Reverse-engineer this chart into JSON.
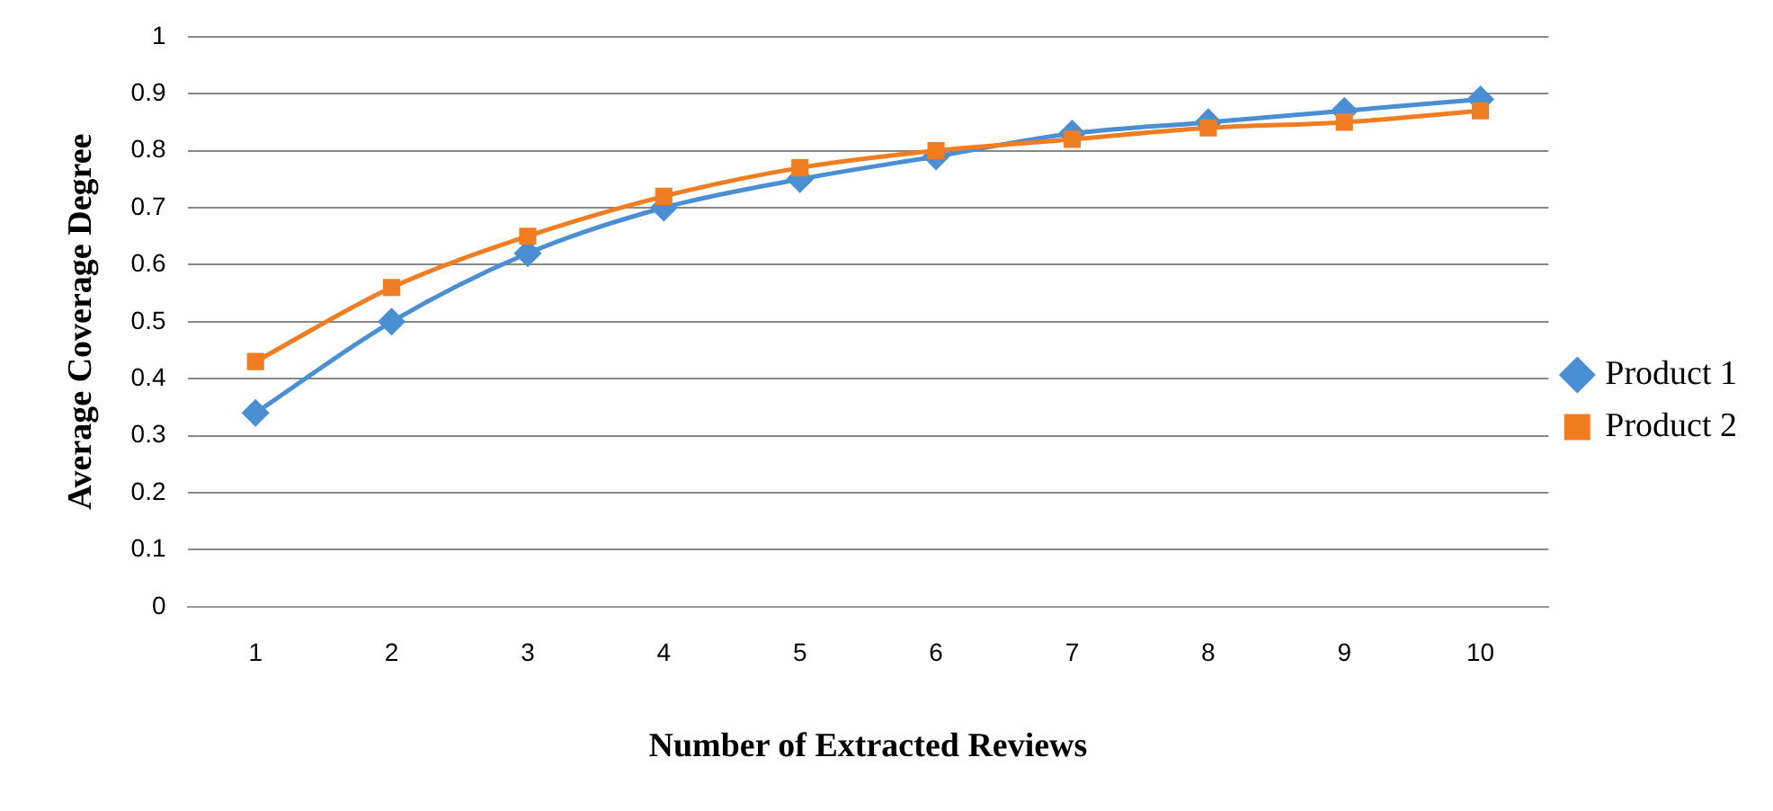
{
  "chart_data": {
    "type": "line",
    "xlabel": "Number of Extracted Reviews",
    "ylabel": "Average Coverage Degree",
    "categories": [
      "1",
      "2",
      "3",
      "4",
      "5",
      "6",
      "7",
      "8",
      "9",
      "10"
    ],
    "series": [
      {
        "name": "Product 1",
        "color": "#4a8fd4",
        "marker": "diamond",
        "values": [
          0.34,
          0.5,
          0.62,
          0.7,
          0.75,
          0.79,
          0.83,
          0.85,
          0.87,
          0.89
        ]
      },
      {
        "name": "Product 2",
        "color": "#f07d22",
        "marker": "square",
        "values": [
          0.43,
          0.56,
          0.65,
          0.72,
          0.77,
          0.8,
          0.82,
          0.84,
          0.85,
          0.87
        ]
      }
    ],
    "ylim": [
      0,
      1
    ],
    "yticks": [
      0,
      0.1,
      0.2,
      0.3,
      0.4,
      0.5,
      0.6,
      0.7,
      0.8,
      0.9,
      1
    ],
    "grid": "y",
    "legend": "right"
  }
}
